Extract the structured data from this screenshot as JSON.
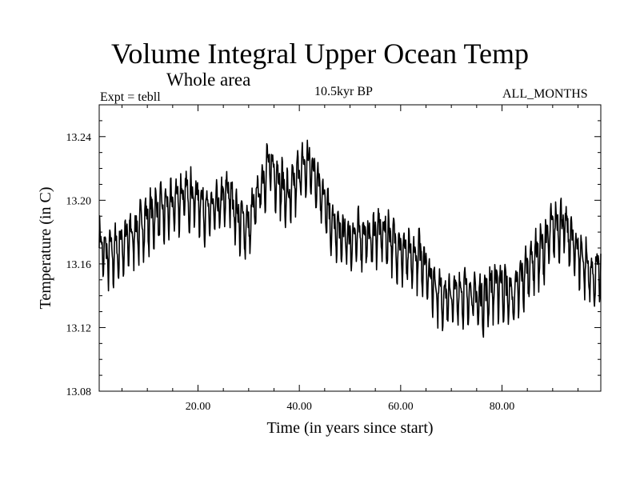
{
  "chart_data": {
    "type": "line",
    "title": "Volume Integral Upper Ocean Temp",
    "subtitle": "Whole area",
    "annotations": {
      "left": "Expt = tebll",
      "center": "10.5kyr BP",
      "right": "ALL_MONTHS"
    },
    "xlabel": "Time (in years since start)",
    "ylabel": "Temperature (in C)",
    "xlim": [
      0.5,
      99.5
    ],
    "ylim": [
      13.08,
      13.26
    ],
    "xticks": [
      20,
      40,
      60,
      80
    ],
    "xtick_labels": [
      "20.00",
      "40.00",
      "60.00",
      "80.00"
    ],
    "yticks": [
      13.08,
      13.12,
      13.16,
      13.2,
      13.24
    ],
    "ytick_labels": [
      "13.08",
      "13.12",
      "13.16",
      "13.20",
      "13.24"
    ],
    "grid": false,
    "series": [
      {
        "name": "Temperature",
        "seasonal_amplitude": 0.02,
        "x": [
          0.5,
          2,
          4,
          6,
          8,
          10,
          12,
          14,
          16,
          18,
          20,
          22,
          24,
          26,
          28,
          30,
          32,
          34,
          36,
          38,
          40,
          42,
          44,
          46,
          48,
          50,
          52,
          54,
          56,
          58,
          60,
          62,
          64,
          66,
          68,
          70,
          72,
          74,
          76,
          78,
          80,
          82,
          84,
          86,
          88,
          90,
          92,
          94,
          96,
          98,
          99.5
        ],
        "y": [
          13.172,
          13.165,
          13.168,
          13.175,
          13.18,
          13.188,
          13.192,
          13.194,
          13.2,
          13.203,
          13.2,
          13.192,
          13.195,
          13.205,
          13.188,
          13.182,
          13.205,
          13.222,
          13.212,
          13.2,
          13.218,
          13.222,
          13.21,
          13.186,
          13.178,
          13.175,
          13.178,
          13.175,
          13.18,
          13.176,
          13.168,
          13.162,
          13.165,
          13.15,
          13.14,
          13.138,
          13.142,
          13.14,
          13.136,
          13.145,
          13.146,
          13.138,
          13.15,
          13.162,
          13.168,
          13.182,
          13.185,
          13.172,
          13.162,
          13.15,
          13.158
        ]
      }
    ]
  }
}
